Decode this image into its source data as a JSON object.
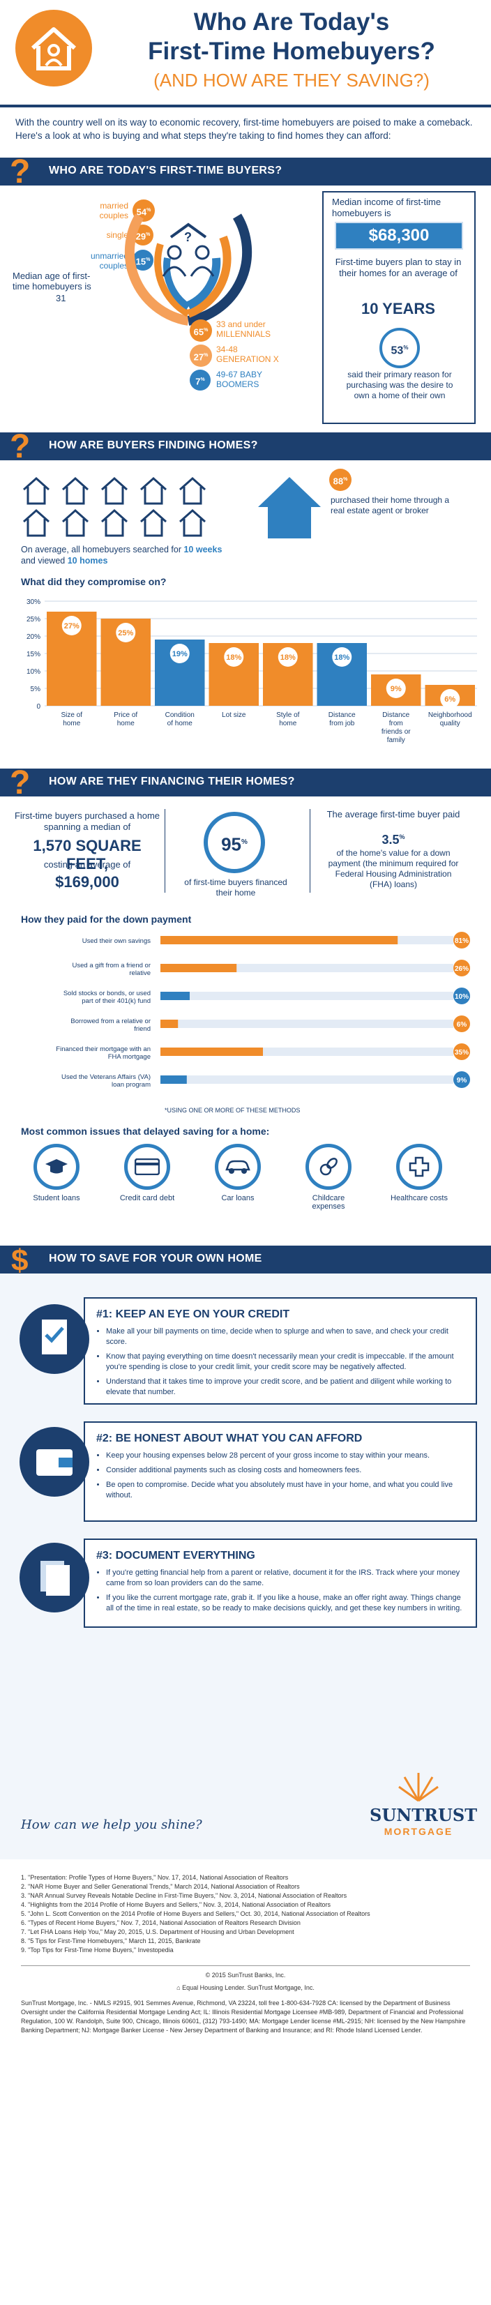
{
  "header": {
    "title_line1": "Who Are Today's",
    "title_line2": "First-Time Homebuyers?",
    "subtitle": "(AND HOW ARE THEY SAVING?)"
  },
  "intro": "With the country well on its way to economic recovery, first-time homebuyers are poised to make a comeback. Here's a look at who is buying and what steps they're taking to find homes they can afford:",
  "section1": {
    "title": "WHO ARE TODAY'S FIRST-TIME BUYERS?",
    "marital": [
      {
        "label": "married couples",
        "pct": "54",
        "sup": "%"
      },
      {
        "label": "single",
        "pct": "29",
        "sup": "%"
      },
      {
        "label": "unmarried couples",
        "pct": "15",
        "sup": "%",
        "note": "1"
      }
    ],
    "median_age_label": "Median age of first-time homebuyers is",
    "median_age": "31",
    "median_age_note": "1",
    "generations": [
      {
        "pct": "65",
        "label": "33 and under MILLENNIALS",
        "note": "2"
      },
      {
        "pct": "27",
        "label": "34-48 GENERATION X"
      },
      {
        "pct": "7",
        "label": "49-67 BABY BOOMERS"
      }
    ],
    "income_label": "Median income of first-time homebuyers is",
    "income_note": "1",
    "income": "$68,300",
    "stay_label": "First-time buyers plan to stay in their homes for an average of",
    "stay_years": "10 YEARS",
    "reason_pct": "53",
    "reason_text": "said their primary reason for purchasing was the desire to own a home of their own",
    "reason_note": "3"
  },
  "section2": {
    "title": "HOW ARE BUYERS FINDING HOMES?",
    "search_text_1": "On average, all homebuyers searched for",
    "search_bold_1": "10 weeks",
    "search_text_2": "and viewed",
    "search_bold_2": "10 homes",
    "search_note": "4",
    "agent_pct": "88",
    "agent_text": "purchased their home through a real estate agent or broker",
    "agent_note": "4",
    "compromise_title": "What did they compromise on?",
    "compromise_note": "5"
  },
  "chart_data": [
    {
      "type": "bar",
      "title": "What did they compromise on?",
      "categories": [
        "Size of home",
        "Price of home",
        "Condition of home",
        "Lot size",
        "Style of home",
        "Distance from job",
        "Distance from friends or family",
        "Neighborhood quality"
      ],
      "values": [
        27,
        25,
        19,
        18,
        18,
        18,
        9,
        6
      ],
      "ylim": [
        0,
        30
      ],
      "yticks": [
        "0",
        "5%",
        "10%",
        "15%",
        "20%",
        "25%",
        "30%"
      ],
      "grid": true
    },
    {
      "type": "bar",
      "title": "How they paid for the down payment",
      "categories": [
        "Used their own savings",
        "Used a gift from a friend or relative",
        "Sold stocks or bonds, or used part of their 401(k) fund",
        "Borrowed from a relative or friend",
        "Financed their mortgage with an FHA mortgage",
        "Used the Veterans Affairs (VA) loan program"
      ],
      "values": [
        81,
        26,
        10,
        6,
        35,
        9
      ],
      "ylim": [
        0,
        100
      ]
    }
  ],
  "section3": {
    "title": "HOW ARE THEY FINANCING THEIR HOMES?",
    "sqft_text": "First-time buyers purchased a home spanning a median of",
    "sqft": "1,570 SQUARE FEET,",
    "sqft_note": "6",
    "cost_text": "costing an average of",
    "cost": "$169,000",
    "cost_note": "7",
    "fin_pct": "95",
    "fin_text": "of first-time buyers financed their home",
    "fin_note": "4",
    "down_text_1": "The average first-time buyer paid",
    "down_pct": "3.5",
    "down_text_2": "of the home's value for a down payment (the minimum required for Federal Housing Administration (FHA) loans)",
    "down_note": "7",
    "paid_title": "How they paid for the down payment",
    "paid_note": "*3",
    "paid_footnote": "*USING ONE OR MORE OF THESE METHODS",
    "issues_title": "Most common issues that delayed saving for a home:",
    "issues_note": "4",
    "issues": [
      {
        "label": "Student loans",
        "icon": "graduation-cap-icon"
      },
      {
        "label": "Credit card debt",
        "icon": "credit-card-icon"
      },
      {
        "label": "Car loans",
        "icon": "car-icon"
      },
      {
        "label": "Childcare expenses",
        "icon": "pacifier-icon"
      },
      {
        "label": "Healthcare costs",
        "icon": "medical-cross-icon"
      }
    ]
  },
  "section4": {
    "title": "HOW TO SAVE FOR YOUR OWN HOME",
    "tips": [
      {
        "heading": "#1: KEEP AN EYE ON YOUR CREDIT",
        "icon": "check-form-icon",
        "bullets": [
          "Make all your bill payments on time, decide when to splurge and when to save, and check your credit score.",
          "Know that paying everything on time doesn't necessarily mean your credit is impeccable. If the amount you're spending is close to your credit limit, your credit score may be negatively affected.",
          "Understand that it takes time to improve your credit score, and be patient and diligent while working to elevate that number."
        ]
      },
      {
        "heading": "#2: BE HONEST ABOUT WHAT YOU CAN AFFORD",
        "icon": "wallet-icon",
        "bullets": [
          "Keep your housing expenses below 28 percent of your gross income to stay within your means.",
          "Consider additional payments such as closing costs and homeowners fees.",
          "Be open to compromise. Decide what you absolutely must have in your home, and what you could live without."
        ]
      },
      {
        "heading": "#3: DOCUMENT EVERYTHING",
        "icon": "documents-icon",
        "bullets": [
          "If you're getting financial help from a parent or relative, document it for the IRS. Track where your money came from so loan providers can do the same.",
          "If you like the current mortgage rate, grab it. If you like a house, make an offer right away. Things change all of the time in real estate, so be ready to make decisions quickly, and get these key numbers in writing."
        ]
      }
    ],
    "tagline": "How can we help you shine?",
    "brand": "SUNTRUST",
    "brand_sub": "MORTGAGE"
  },
  "footnotes": [
    "1. \"Presentation: Profile Types of Home Buyers,\" Nov. 17, 2014, National Association of Realtors",
    "2. \"NAR Home Buyer and Seller Generational Trends,\" March 2014, National Association of Realtors",
    "3. \"NAR Annual Survey Reveals Notable Decline in First-Time Buyers,\" Nov. 3, 2014, National Association of Realtors",
    "4. \"Highlights from the 2014 Profile of Home Buyers and Sellers,\" Nov. 3, 2014, National Association of Realtors",
    "5. \"John L. Scott Convention on the 2014 Profile of Home Buyers and Sellers,\" Oct. 30, 2014, National Association of Realtors",
    "6. \"Types of Recent Home Buyers,\" Nov. 7, 2014, National Association of Realtors Research Division",
    "7. \"Let FHA Loans Help You,\" May 20, 2015, U.S. Department of Housing and Urban Development",
    "8. \"5 Tips for First-Time Homebuyers,\" March 11, 2015, Bankrate",
    "9. \"Top Tips for First-Time Home Buyers,\" Investopedia"
  ],
  "copyright": "© 2015 SunTrust Banks, Inc.",
  "equal_housing": "Equal Housing Lender. SunTrust Mortgage, Inc.",
  "legal": "SunTrust Mortgage, Inc. - NMLS #2915, 901 Semmes Avenue, Richmond, VA 23224, toll free 1-800-634-7928 CA: licensed by the Department of Business Oversight under the California Residential Mortgage Lending Act; IL: Illinois Residential Mortgage Licensee #MB-989, Department of Financial and Professional Regulation, 100 W. Randolph, Suite 900, Chicago, Illinois 60601, (312) 793-1490; MA: Mortgage Lender license #ML-2915; NH: licensed by the New Hampshire Banking Department; NJ: Mortgage Banker License - New Jersey Department of Banking and Insurance; and RI: Rhode Island Licensed Lender.",
  "colors": {
    "navy": "#1c3f6e",
    "orange": "#f08c2a",
    "blue": "#2f80c0"
  }
}
